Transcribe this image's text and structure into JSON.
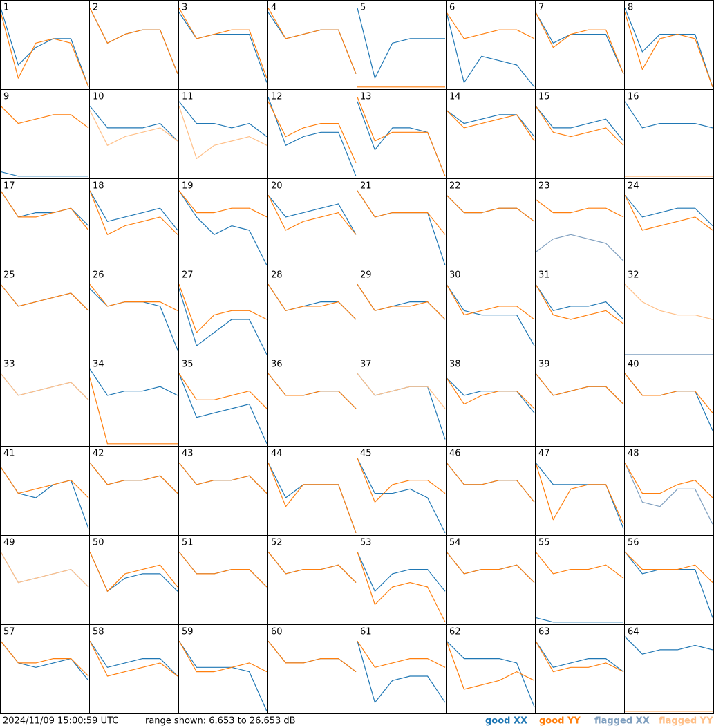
{
  "ylim": [
    6.653,
    26.653
  ],
  "legend": [
    {
      "name": "good XX",
      "color": "#1f77b4"
    },
    {
      "name": "good YY",
      "color": "#ff7f0e"
    },
    {
      "name": "flagged XX",
      "color": "#7f9fbf"
    },
    {
      "name": "flagged YY",
      "color": "#ffbf87"
    }
  ],
  "footer": {
    "timestamp": "2024/11/09 15:00:59 UTC",
    "range": "range shown: 6.653 to 26.653 dB"
  },
  "panels": [
    {
      "label": "1",
      "xx": [
        25,
        12,
        16,
        18,
        18,
        7
      ],
      "yy": [
        24,
        9,
        17,
        18,
        17,
        7
      ]
    },
    {
      "label": "2",
      "xx": [
        25,
        17,
        19,
        20,
        20,
        10
      ],
      "yy": [
        25,
        17,
        19,
        20,
        20,
        10
      ]
    },
    {
      "label": "3",
      "xx": [
        24,
        18,
        19,
        19,
        19,
        8
      ],
      "yy": [
        25,
        18,
        19,
        20,
        20,
        9
      ]
    },
    {
      "label": "4",
      "xx": [
        24,
        18,
        19,
        20,
        20,
        10
      ],
      "yy": [
        25,
        18,
        19,
        20,
        20,
        10
      ]
    },
    {
      "label": "5",
      "xx": [
        25,
        9,
        17,
        18,
        18,
        18
      ],
      "yy": [
        7,
        7,
        7,
        7,
        7,
        7
      ]
    },
    {
      "label": "6",
      "xx": [
        24,
        8,
        14,
        13,
        12,
        7
      ],
      "yy": [
        24,
        18,
        19,
        20,
        20,
        18
      ]
    },
    {
      "label": "7",
      "xx": [
        24,
        17,
        19,
        19,
        19,
        10
      ],
      "yy": [
        24,
        16,
        19,
        20,
        20,
        10
      ]
    },
    {
      "label": "8",
      "xx": [
        25,
        15,
        19,
        19,
        19,
        7
      ],
      "yy": [
        24,
        11,
        18,
        19,
        18,
        7
      ]
    },
    {
      "label": "9",
      "xx": [
        8,
        7,
        7,
        7,
        7,
        7
      ],
      "yy": [
        23,
        19,
        20,
        21,
        21,
        18
      ]
    },
    {
      "label": "10",
      "xx": [
        23,
        18,
        18,
        18,
        19,
        15
      ],
      "yy": [
        22,
        14,
        16,
        17,
        18,
        15
      ],
      "yy_flagged": true
    },
    {
      "label": "11",
      "xx": [
        24,
        19,
        19,
        18,
        19,
        16
      ],
      "yy": [
        23,
        11,
        14,
        15,
        16,
        14
      ],
      "yy_flagged": true
    },
    {
      "label": "12",
      "xx": [
        25,
        14,
        16,
        17,
        17,
        7
      ],
      "yy": [
        24,
        16,
        18,
        19,
        19,
        10
      ]
    },
    {
      "label": "13",
      "xx": [
        24,
        13,
        18,
        18,
        17,
        7
      ],
      "yy": [
        25,
        15,
        17,
        17,
        17,
        7
      ]
    },
    {
      "label": "14",
      "xx": [
        22,
        19,
        20,
        21,
        21,
        16
      ],
      "yy": [
        22,
        18,
        19,
        20,
        21,
        15
      ]
    },
    {
      "label": "15",
      "xx": [
        23,
        18,
        18,
        19,
        20,
        15
      ],
      "yy": [
        23,
        17,
        16,
        17,
        18,
        14
      ]
    },
    {
      "label": "16",
      "xx": [
        24,
        18,
        19,
        19,
        19,
        18
      ],
      "yy": [
        7,
        7,
        7,
        7,
        7,
        7
      ]
    },
    {
      "label": "17",
      "xx": [
        24,
        18,
        19,
        19,
        20,
        16
      ],
      "yy": [
        24,
        18,
        18,
        19,
        20,
        15
      ]
    },
    {
      "label": "18",
      "xx": [
        24,
        17,
        18,
        19,
        20,
        15
      ],
      "yy": [
        24,
        14,
        16,
        17,
        18,
        14
      ]
    },
    {
      "label": "19",
      "xx": [
        24,
        18,
        14,
        16,
        15,
        7
      ],
      "yy": [
        24,
        19,
        19,
        20,
        20,
        18
      ]
    },
    {
      "label": "20",
      "xx": [
        23,
        18,
        19,
        20,
        21,
        14
      ],
      "yy": [
        23,
        15,
        17,
        18,
        19,
        14
      ]
    },
    {
      "label": "21",
      "xx": [
        24,
        18,
        19,
        19,
        19,
        7
      ],
      "yy": [
        24,
        18,
        19,
        19,
        19,
        14
      ]
    },
    {
      "label": "22",
      "xx": [
        23,
        19,
        19,
        20,
        20,
        17
      ],
      "yy": [
        23,
        19,
        19,
        20,
        20,
        17
      ]
    },
    {
      "label": "23",
      "xx": [
        10,
        13,
        14,
        13,
        12,
        8
      ],
      "yy": [
        22,
        19,
        19,
        20,
        20,
        18
      ],
      "xx_flagged": true
    },
    {
      "label": "24",
      "xx": [
        23,
        18,
        19,
        20,
        20,
        16
      ],
      "yy": [
        23,
        15,
        16,
        17,
        18,
        15
      ]
    },
    {
      "label": "25",
      "xx": [
        23,
        18,
        19,
        20,
        21,
        17
      ],
      "yy": [
        23,
        18,
        19,
        20,
        21,
        17
      ]
    },
    {
      "label": "26",
      "xx": [
        22,
        18,
        19,
        19,
        18,
        8
      ],
      "yy": [
        23,
        18,
        19,
        19,
        19,
        17
      ]
    },
    {
      "label": "27",
      "xx": [
        22,
        9,
        12,
        15,
        15,
        7
      ],
      "yy": [
        23,
        12,
        16,
        17,
        17,
        15
      ]
    },
    {
      "label": "28",
      "xx": [
        23,
        17,
        18,
        19,
        19,
        15
      ],
      "yy": [
        23,
        17,
        18,
        18,
        19,
        15
      ]
    },
    {
      "label": "29",
      "xx": [
        23,
        17,
        18,
        19,
        19,
        15
      ],
      "yy": [
        23,
        17,
        18,
        18,
        19,
        15
      ]
    },
    {
      "label": "30",
      "xx": [
        23,
        17,
        16,
        16,
        16,
        9
      ],
      "yy": [
        23,
        16,
        17,
        18,
        18,
        15
      ]
    },
    {
      "label": "31",
      "xx": [
        23,
        17,
        18,
        18,
        19,
        15
      ],
      "yy": [
        23,
        16,
        15,
        16,
        17,
        14
      ]
    },
    {
      "label": "32",
      "xx": [
        7,
        7,
        7,
        7,
        7,
        7
      ],
      "yy": [
        23,
        19,
        17,
        16,
        16,
        15
      ],
      "xx_flagged": true,
      "yy_flagged": true
    },
    {
      "label": "33",
      "xx": [
        23,
        18,
        19,
        20,
        21,
        17
      ],
      "yy": [
        23,
        18,
        19,
        20,
        21,
        17
      ],
      "xx_flagged": true,
      "yy_flagged": true
    },
    {
      "label": "34",
      "xx": [
        24,
        18,
        19,
        19,
        20,
        18
      ],
      "yy": [
        22,
        7,
        7,
        7,
        7,
        7
      ]
    },
    {
      "label": "35",
      "xx": [
        23,
        13,
        14,
        15,
        16,
        7
      ],
      "yy": [
        23,
        17,
        17,
        18,
        19,
        15
      ]
    },
    {
      "label": "36",
      "xx": [
        23,
        18,
        18,
        19,
        19,
        15
      ],
      "yy": [
        23,
        18,
        18,
        19,
        19,
        15
      ]
    },
    {
      "label": "37",
      "xx": [
        23,
        18,
        19,
        20,
        20,
        8
      ],
      "yy": [
        23,
        18,
        19,
        20,
        20,
        15
      ],
      "yy_flagged": true
    },
    {
      "label": "38",
      "xx": [
        22,
        18,
        19,
        19,
        19,
        14
      ],
      "yy": [
        22,
        16,
        18,
        19,
        19,
        15
      ]
    },
    {
      "label": "39",
      "xx": [
        23,
        18,
        19,
        20,
        20,
        16
      ],
      "yy": [
        23,
        18,
        19,
        20,
        20,
        16
      ]
    },
    {
      "label": "40",
      "xx": [
        23,
        18,
        18,
        19,
        19,
        10
      ],
      "yy": [
        23,
        18,
        18,
        19,
        19,
        14
      ]
    },
    {
      "label": "41",
      "xx": [
        22,
        16,
        15,
        18,
        19,
        8
      ],
      "yy": [
        22,
        16,
        17,
        18,
        19,
        15
      ]
    },
    {
      "label": "42",
      "xx": [
        23,
        18,
        19,
        19,
        20,
        16
      ],
      "yy": [
        23,
        18,
        19,
        19,
        20,
        16
      ]
    },
    {
      "label": "43",
      "xx": [
        23,
        18,
        19,
        19,
        20,
        16
      ],
      "yy": [
        23,
        18,
        19,
        19,
        20,
        16
      ]
    },
    {
      "label": "44",
      "xx": [
        23,
        15,
        18,
        18,
        18,
        7
      ],
      "yy": [
        23,
        13,
        18,
        18,
        18,
        7
      ]
    },
    {
      "label": "45",
      "xx": [
        24,
        16,
        16,
        17,
        15,
        7
      ],
      "yy": [
        24,
        14,
        18,
        19,
        19,
        16
      ]
    },
    {
      "label": "46",
      "xx": [
        23,
        18,
        18,
        19,
        19,
        14
      ],
      "yy": [
        23,
        18,
        18,
        19,
        19,
        14
      ]
    },
    {
      "label": "47",
      "xx": [
        23,
        18,
        18,
        18,
        18,
        8
      ],
      "yy": [
        23,
        10,
        17,
        18,
        18,
        9
      ]
    },
    {
      "label": "48",
      "xx": [
        23,
        14,
        13,
        17,
        17,
        9
      ],
      "yy": [
        23,
        16,
        16,
        18,
        19,
        15
      ],
      "xx_flagged": true
    },
    {
      "label": "49",
      "xx": [
        23,
        16,
        17,
        18,
        19,
        15
      ],
      "yy": [
        23,
        16,
        17,
        18,
        19,
        15
      ],
      "xx_flagged": true,
      "yy_flagged": true
    },
    {
      "label": "50",
      "xx": [
        23,
        14,
        17,
        18,
        18,
        14
      ],
      "yy": [
        23,
        14,
        18,
        19,
        20,
        15
      ]
    },
    {
      "label": "51",
      "xx": [
        23,
        18,
        18,
        19,
        19,
        15
      ],
      "yy": [
        23,
        18,
        18,
        19,
        19,
        15
      ]
    },
    {
      "label": "52",
      "xx": [
        23,
        18,
        19,
        19,
        20,
        16
      ],
      "yy": [
        23,
        18,
        19,
        19,
        20,
        16
      ]
    },
    {
      "label": "53",
      "xx": [
        23,
        14,
        18,
        19,
        19,
        14
      ],
      "yy": [
        23,
        11,
        15,
        16,
        15,
        7
      ]
    },
    {
      "label": "54",
      "xx": [
        23,
        18,
        19,
        19,
        20,
        16
      ],
      "yy": [
        23,
        18,
        19,
        19,
        20,
        16
      ]
    },
    {
      "label": "55",
      "xx": [
        8,
        7,
        7,
        7,
        7,
        7
      ],
      "yy": [
        23,
        18,
        19,
        19,
        20,
        17
      ]
    },
    {
      "label": "56",
      "xx": [
        23,
        18,
        19,
        19,
        19,
        8
      ],
      "yy": [
        23,
        19,
        19,
        19,
        20,
        16
      ]
    },
    {
      "label": "57",
      "xx": [
        23,
        18,
        17,
        18,
        19,
        14
      ],
      "yy": [
        23,
        18,
        18,
        19,
        19,
        15
      ]
    },
    {
      "label": "58",
      "xx": [
        23,
        17,
        18,
        19,
        19,
        15
      ],
      "yy": [
        23,
        15,
        16,
        17,
        18,
        15
      ]
    },
    {
      "label": "59",
      "xx": [
        23,
        17,
        17,
        17,
        16,
        7
      ],
      "yy": [
        23,
        16,
        16,
        17,
        18,
        16
      ]
    },
    {
      "label": "60",
      "xx": [
        23,
        18,
        18,
        19,
        19,
        16
      ],
      "yy": [
        23,
        18,
        18,
        19,
        19,
        16
      ]
    },
    {
      "label": "61",
      "xx": [
        23,
        9,
        14,
        15,
        15,
        9
      ],
      "yy": [
        23,
        17,
        18,
        19,
        19,
        17
      ]
    },
    {
      "label": "62",
      "xx": [
        23,
        19,
        19,
        19,
        18,
        8
      ],
      "yy": [
        23,
        12,
        13,
        14,
        16,
        14
      ]
    },
    {
      "label": "63",
      "xx": [
        23,
        17,
        18,
        19,
        19,
        16
      ],
      "yy": [
        23,
        16,
        17,
        17,
        18,
        16
      ]
    },
    {
      "label": "64",
      "xx": [
        24,
        20,
        21,
        21,
        22,
        21
      ],
      "yy": [
        7,
        7,
        7,
        7,
        7,
        7
      ]
    }
  ]
}
